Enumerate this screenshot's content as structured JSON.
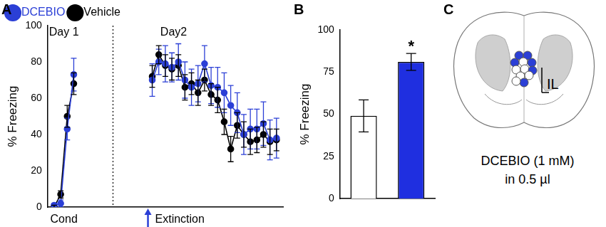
{
  "chart_data": [
    {
      "panel_label": "A",
      "type": "line",
      "ylabel": "% Freezing",
      "x": [
        1,
        2,
        3,
        4,
        10,
        16,
        17,
        18,
        19,
        20,
        21,
        22,
        23,
        24,
        25,
        26,
        27,
        28,
        29,
        30,
        31,
        32,
        33,
        34,
        35
      ],
      "xlim": [
        0,
        36
      ],
      "ylim": [
        0,
        100
      ],
      "yticks": [
        0,
        20,
        40,
        60,
        80,
        100
      ],
      "grid": false,
      "legend": "top",
      "tick_labels": "y",
      "marker": "circle",
      "phase_labels_top": [
        "Day 1",
        "Day2"
      ],
      "phase_labels_bottom": [
        "Cond",
        "Extinction"
      ],
      "series": [
        {
          "name": "DCEBIO",
          "color": "#2b3fd6",
          "values": [
            1,
            2,
            43,
            73,
            null,
            70,
            80,
            79,
            77,
            80,
            70,
            66,
            68,
            79,
            67,
            66,
            63,
            56,
            52,
            40,
            43,
            43,
            46,
            37,
            38
          ],
          "errors": [
            1,
            2,
            6,
            9,
            null,
            9,
            7,
            10,
            8,
            10,
            10,
            10,
            10,
            10,
            10,
            11,
            11,
            11,
            11,
            11,
            11,
            11,
            12,
            11,
            11
          ]
        },
        {
          "name": "Vehicle",
          "color": "#000000",
          "values": [
            0,
            7,
            50,
            68,
            null,
            72,
            84,
            78,
            76,
            78,
            66,
            68,
            63,
            70,
            62,
            59,
            47,
            32,
            45,
            40,
            36,
            37,
            40,
            36,
            37
          ],
          "errors": [
            1,
            2,
            6,
            6,
            null,
            6,
            5,
            6,
            6,
            6,
            7,
            6,
            7,
            6,
            6,
            7,
            7,
            7,
            7,
            7,
            7,
            7,
            7,
            7,
            6
          ]
        }
      ]
    },
    {
      "panel_label": "B",
      "type": "bar",
      "ylabel": "% Freezing",
      "categories": [
        null,
        null
      ],
      "values": [
        49,
        81
      ],
      "errors": [
        9.5,
        5
      ],
      "colors": [
        "#ffffff",
        "#1f2fe0"
      ],
      "significance": [
        null,
        "*"
      ],
      "ylim": [
        0,
        100
      ],
      "yticks": [
        0,
        25,
        50,
        75,
        100
      ],
      "grid": false,
      "tick_labels": "y"
    }
  ],
  "diagram": {
    "panel_label": "C",
    "region_label": "IL",
    "caption": [
      "DCEBIO (1 mM)",
      "in 0.5 µl"
    ]
  }
}
